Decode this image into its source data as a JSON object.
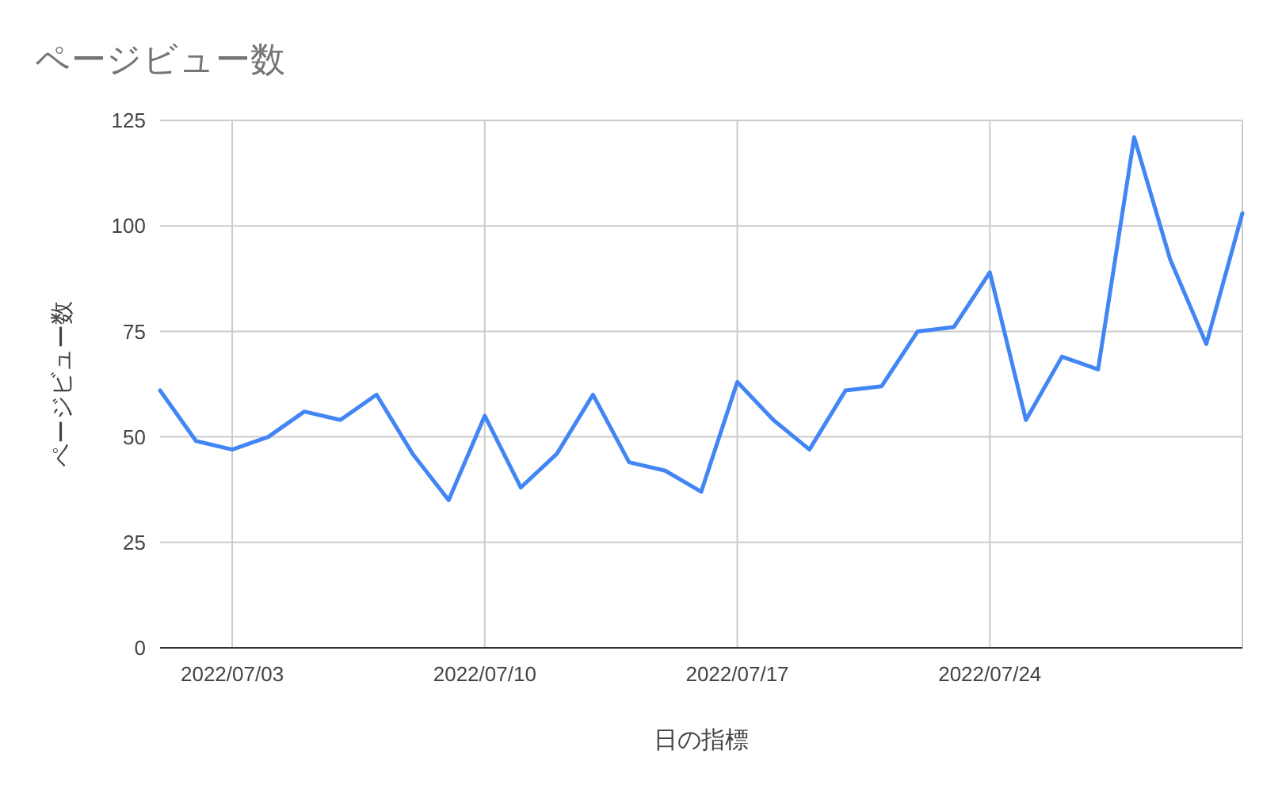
{
  "chart_data": {
    "type": "line",
    "title": "ページビュー数",
    "xlabel": "日の指標",
    "ylabel": "ページビュー数",
    "x": [
      "2022-07-01",
      "2022-07-02",
      "2022-07-03",
      "2022-07-04",
      "2022-07-05",
      "2022-07-06",
      "2022-07-07",
      "2022-07-08",
      "2022-07-09",
      "2022-07-10",
      "2022-07-11",
      "2022-07-12",
      "2022-07-13",
      "2022-07-14",
      "2022-07-15",
      "2022-07-16",
      "2022-07-17",
      "2022-07-18",
      "2022-07-19",
      "2022-07-20",
      "2022-07-21",
      "2022-07-22",
      "2022-07-23",
      "2022-07-24",
      "2022-07-25",
      "2022-07-26",
      "2022-07-27",
      "2022-07-28",
      "2022-07-29",
      "2022-07-30",
      "2022-07-31"
    ],
    "values": [
      61,
      49,
      47,
      50,
      56,
      54,
      60,
      46,
      35,
      55,
      38,
      46,
      60,
      44,
      42,
      37,
      63,
      54,
      47,
      61,
      62,
      75,
      76,
      89,
      54,
      69,
      66,
      121,
      92,
      72,
      103
    ],
    "color": "#4285f4",
    "xlim": [
      "2022-07-01",
      "2022-07-31"
    ],
    "xticks": [
      {
        "value": "2022-07-03",
        "label": "2022/07/03"
      },
      {
        "value": "2022-07-10",
        "label": "2022/07/10"
      },
      {
        "value": "2022-07-17",
        "label": "2022/07/17"
      },
      {
        "value": "2022-07-24",
        "label": "2022/07/24"
      },
      {
        "value": "2022-07-31",
        "label": null
      }
    ],
    "ylim": [
      0,
      125
    ],
    "yticks": [
      0,
      25,
      50,
      75,
      100,
      125
    ],
    "grid": true
  }
}
